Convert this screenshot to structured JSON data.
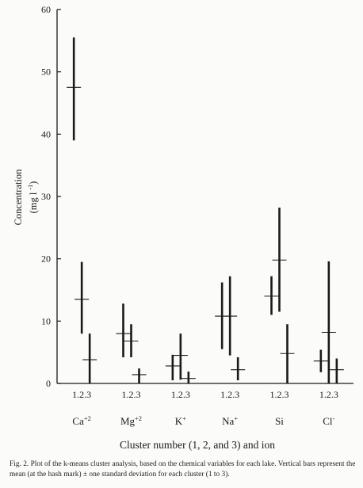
{
  "chart_data": {
    "type": "error-bar",
    "ylabel": "Concentration",
    "ylabel_unit": "(mg l",
    "ylabel_unit_sup": "-1",
    "ylabel_unit_close": ")",
    "xlabel": "Cluster number (1, 2, and 3) and ion",
    "ylim": [
      0,
      60
    ],
    "yticks": [
      0,
      10,
      20,
      30,
      40,
      50,
      60
    ],
    "grid": false,
    "cluster_label": "1.2.3",
    "clusters": [
      "1",
      "2",
      "3"
    ],
    "ions": [
      {
        "label": "Ca",
        "sup": "+2",
        "bars": [
          {
            "cluster": "1",
            "mean": 47.5,
            "low": 39.0,
            "high": 55.5
          },
          {
            "cluster": "2",
            "mean": 13.5,
            "low": 8.0,
            "high": 19.5
          },
          {
            "cluster": "3",
            "mean": 3.8,
            "low": 0.0,
            "high": 8.0
          }
        ]
      },
      {
        "label": "Mg",
        "sup": "+2",
        "bars": [
          {
            "cluster": "1",
            "mean": 8.0,
            "low": 4.2,
            "high": 12.8
          },
          {
            "cluster": "2",
            "mean": 6.8,
            "low": 4.2,
            "high": 9.5
          },
          {
            "cluster": "3",
            "mean": 1.4,
            "low": 0.0,
            "high": 2.4
          }
        ]
      },
      {
        "label": "K",
        "sup": "+",
        "bars": [
          {
            "cluster": "1",
            "mean": 2.8,
            "low": 0.5,
            "high": 4.6
          },
          {
            "cluster": "2",
            "mean": 4.5,
            "low": 0.6,
            "high": 8.0
          },
          {
            "cluster": "3",
            "mean": 0.8,
            "low": 0.0,
            "high": 1.9
          }
        ]
      },
      {
        "label": "Na",
        "sup": "+",
        "bars": [
          {
            "cluster": "1",
            "mean": 10.8,
            "low": 5.5,
            "high": 16.2
          },
          {
            "cluster": "2",
            "mean": 10.8,
            "low": 4.5,
            "high": 17.2
          },
          {
            "cluster": "3",
            "mean": 2.2,
            "low": 0.5,
            "high": 4.2
          }
        ]
      },
      {
        "label": "Si",
        "sup": "",
        "bars": [
          {
            "cluster": "1",
            "mean": 14.0,
            "low": 11.0,
            "high": 17.2
          },
          {
            "cluster": "2",
            "mean": 19.8,
            "low": 11.5,
            "high": 28.2
          },
          {
            "cluster": "3",
            "mean": 4.8,
            "low": 0.0,
            "high": 9.5
          }
        ]
      },
      {
        "label": "Cl",
        "sup": "-",
        "bars": [
          {
            "cluster": "1",
            "mean": 3.6,
            "low": 1.8,
            "high": 5.4
          },
          {
            "cluster": "2",
            "mean": 8.2,
            "low": 0.0,
            "high": 19.6
          },
          {
            "cluster": "3",
            "mean": 2.2,
            "low": 0.0,
            "high": 4.0
          }
        ]
      }
    ]
  },
  "caption": "Fig. 2. Plot of the k-means cluster analysis, based on the chemical variables for each lake. Vertical bars represent the mean (at the hash mark) ± one standard deviation for each cluster (1 to 3).",
  "colors": {
    "ink": "#1a1a1a",
    "background": "#fbfbf9"
  }
}
